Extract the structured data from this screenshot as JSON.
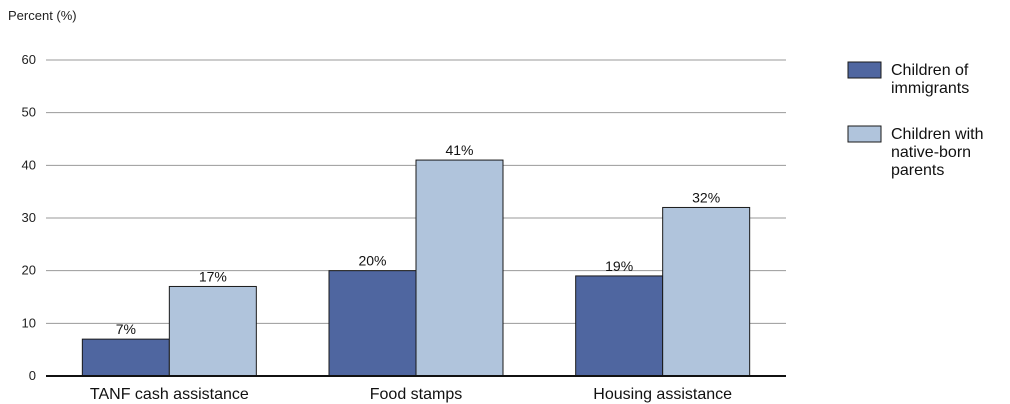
{
  "chart_data": {
    "type": "bar",
    "ylabel": "Percent (%)",
    "categories": [
      "TANF cash assistance",
      "Food stamps",
      "Housing assistance"
    ],
    "ylim": [
      0,
      60
    ],
    "yticks": [
      0,
      10,
      20,
      30,
      40,
      50,
      60
    ],
    "grid": true,
    "legend_position": "right",
    "series": [
      {
        "name": "Children of immigrants",
        "values": [
          7,
          20,
          19
        ],
        "labels": [
          "7%",
          "20%",
          "19%"
        ],
        "color": "#4f66a0",
        "legend_lines": [
          "Children of",
          "immigrants"
        ]
      },
      {
        "name": "Children with native-born parents",
        "values": [
          17,
          41,
          32
        ],
        "labels": [
          "17%",
          "41%",
          "32%"
        ],
        "color": "#b0c4dc",
        "legend_lines": [
          "Children with",
          "native-born",
          "parents"
        ]
      }
    ]
  }
}
